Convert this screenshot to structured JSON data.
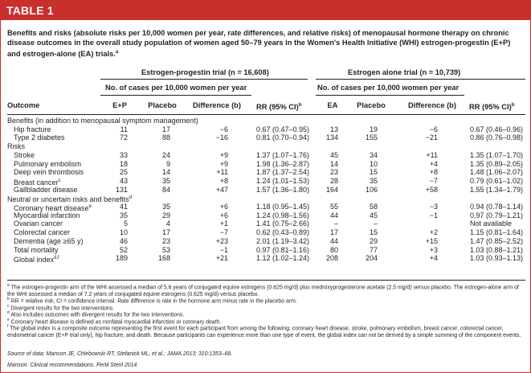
{
  "banner": "TABLE 1",
  "caption": {
    "text": "Benefits and risks (absolute risks per 10,000 women per year, rate differences, and relative risks) of menopausal hormone therapy on chronic disease outcomes in the overall study population of women aged 50–79 years in the Women's Health Initiative (WHI) estrogen-progestin (E+P) and estrogen-alone (EA) trials.",
    "sup": "a"
  },
  "group_headers": {
    "ep": "Estrogen-progestin trial (n = 16,608)",
    "ea": "Estrogen alone trial (n = 10,739)",
    "ep_sub": "No. of cases per 10,000 women per year",
    "ea_sub": "No. of cases per 10,000 women per year"
  },
  "columns": {
    "outcome": "Outcome",
    "ep": "E+P",
    "placebo1": "Placebo",
    "diff1": "Difference (b)",
    "rr1": "RR (95% CI)",
    "rr1_sup": "b",
    "ea": "EA",
    "placebo2": "Placebo",
    "diff2": "Difference (b)",
    "rr2": "RR (95% CI)",
    "rr2_sup": "b"
  },
  "sections": [
    {
      "title": "Benefits (in addition to menopausal symptom management)",
      "rows": [
        {
          "outcome": "Hip fracture",
          "sup": "",
          "ep": "11",
          "p1": "17",
          "d1": "−6",
          "rr1": "0.67 (0.47–0.95)",
          "ea": "13",
          "p2": "19",
          "d2": "−6",
          "rr2": "0.67 (0.46–0.96)"
        },
        {
          "outcome": "Type 2 diabetes",
          "sup": "",
          "ep": "72",
          "p1": "88",
          "d1": "−16",
          "rr1": "0.81 (0.70–0.94)",
          "ea": "134",
          "p2": "155",
          "d2": "−21",
          "rr2": "0.86 (0.76–0.98)"
        }
      ]
    },
    {
      "title": "Risks",
      "rows": [
        {
          "outcome": "Stroke",
          "sup": "",
          "ep": "33",
          "p1": "24",
          "d1": "+9",
          "rr1": "1.37 (1.07–1.76)",
          "ea": "45",
          "p2": "34",
          "d2": "+11",
          "rr2": "1.35 (1.07–1.70)"
        },
        {
          "outcome": "Pulmonary embolism",
          "sup": "",
          "ep": "18",
          "p1": "9",
          "d1": "+9",
          "rr1": "1.98 (1.36–2.87)",
          "ea": "14",
          "p2": "10",
          "d2": "+4",
          "rr2": "1.35 (0.89–2.05)"
        },
        {
          "outcome": "Deep vein thrombosis",
          "sup": "",
          "ep": "25",
          "p1": "14",
          "d1": "+11",
          "rr1": "1.87 (1.37–2.54)",
          "ea": "23",
          "p2": "15",
          "d2": "+8",
          "rr2": "1.48 (1.06–2.07)"
        },
        {
          "outcome": "Breast cancer",
          "sup": "c",
          "ep": "43",
          "p1": "35",
          "d1": "+8",
          "rr1": "1.24 (1.01–1.53)",
          "ea": "28",
          "p2": "35",
          "d2": "−7",
          "rr2": "0.79 (0.61–1.02)"
        },
        {
          "outcome": "Gallbladder disease",
          "sup": "",
          "ep": "131",
          "p1": "84",
          "d1": "+47",
          "rr1": "1.57 (1.36–1.80)",
          "ea": "164",
          "p2": "106",
          "d2": "+58",
          "rr2": "1.55 (1.34–1.79)"
        }
      ]
    },
    {
      "title": "Neutral or uncertain risks and benefits",
      "title_sup": "d",
      "rows": [
        {
          "outcome": "Coronary heart disease",
          "sup": "e",
          "ep": "41",
          "p1": "35",
          "d1": "+6",
          "rr1": "1.18 (0.95–1.45)",
          "ea": "55",
          "p2": "58",
          "d2": "−3",
          "rr2": "0.94 (0.78–1.14)"
        },
        {
          "outcome": "Myocardial infarction",
          "sup": "",
          "ep": "35",
          "p1": "29",
          "d1": "+6",
          "rr1": "1.24 (0.98–1.56)",
          "ea": "44",
          "p2": "45",
          "d2": "−1",
          "rr2": "0.97 (0.79–1.21)"
        },
        {
          "outcome": "Ovarian cancer",
          "sup": "",
          "ep": "5",
          "p1": "4",
          "d1": "+1",
          "rr1": "1.41 (0.75–2.66)",
          "ea": "–",
          "p2": "–",
          "d2": "",
          "rr2": "Not available"
        },
        {
          "outcome": "Colorectal cancer",
          "sup": "",
          "ep": "10",
          "p1": "17",
          "d1": "−7",
          "rr1": "0.62 (0.43–0.89)",
          "ea": "17",
          "p2": "15",
          "d2": "+2",
          "rr2": "1.15 (0.81–1.64)"
        },
        {
          "outcome": "Dementia (age ≥65 y)",
          "sup": "",
          "ep": "46",
          "p1": "23",
          "d1": "+23",
          "rr1": "2.01 (1.19–3.42)",
          "ea": "44",
          "p2": "29",
          "d2": "+15",
          "rr2": "1.47 (0.85–2.52)"
        },
        {
          "outcome": "Total mortality",
          "sup": "",
          "ep": "52",
          "p1": "53",
          "d1": "−1",
          "rr1": "0.97 (0.81–1.16)",
          "ea": "80",
          "p2": "77",
          "d2": "+3",
          "rr2": "1.03 (0.88–1.21)"
        },
        {
          "outcome": "Global index",
          "sup": "d,f",
          "ep": "189",
          "p1": "168",
          "d1": "+21",
          "rr1": "1.12 (1.02–1.24)",
          "ea": "208",
          "p2": "204",
          "d2": "+4",
          "rr2": "1.03 (0.93–1.13)"
        }
      ]
    }
  ],
  "footnotes": [
    {
      "sup": "a",
      "text": "The estrogen-progestin arm of the WHI assessed a median of 5.6 years of conjugated equine estrogens (0.625 mg/d) plus medroxyprogesterone acetate (2.5 mg/d) versus placebo. The estrogen-alone arm of the WHI assessed a median of 7.2 years of conjugated equine estrogens (0.625 mg/d) versus placebo."
    },
    {
      "sup": "b",
      "text": "RR = relative risk; CI = confidence interval. Rate difference is rate in the hormone arm minus rate in the placebo arm."
    },
    {
      "sup": "c",
      "text": "Divergent results for the two interventions."
    },
    {
      "sup": "d",
      "text": "Also includes outcomes with divergent results for the two interventions."
    },
    {
      "sup": "e",
      "text": "Coronary heart disease is defined as nonfatal myocardial infarction or coronary death."
    },
    {
      "sup": "f",
      "text": "The global index is a composite outcome representing the first event for each participant from among the following: coronary heart disease, stroke, pulmonary embolism, breast cancer, colorectal cancer, endometrial cancer (E+P trial only), hip fracture, and death. Because participants can experience more than one type of event, the global index can not be derived by a simple summing of the component events."
    }
  ],
  "source": "Source of data: Manson JE, Chlebowski RT, Stefanick ML, et al.; JAMA 2013; 310:1353–68.",
  "citation": "Manson. Clinical recommendations. Fertil Steril 2014."
}
